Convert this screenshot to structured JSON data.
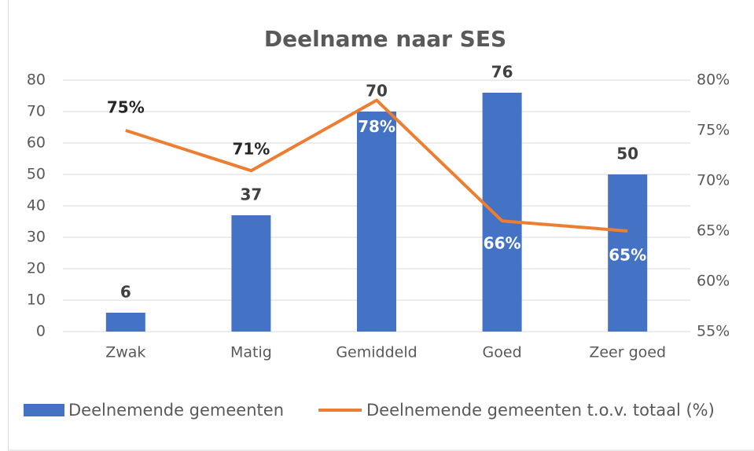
{
  "chart_data": {
    "type": "bar-line",
    "title": "Deelname naar SES",
    "categories": [
      "Zwak",
      "Matig",
      "Gemiddeld",
      "Goed",
      "Zeer goed"
    ],
    "series": [
      {
        "name": "Deelnemende gemeenten",
        "type": "bar",
        "color": "#4472c4",
        "values": [
          6,
          37,
          70,
          76,
          50
        ]
      },
      {
        "name": "Deelnemende gemeenten t.o.v. totaal (%)",
        "type": "line",
        "axis": "y2",
        "color": "#ed7d31",
        "values": [
          75,
          71,
          78,
          66,
          65
        ],
        "value_labels": [
          "75%",
          "71%",
          "78%",
          "66%",
          "65%"
        ]
      }
    ],
    "ylim": [
      0,
      80
    ],
    "yticks": [
      0,
      10,
      20,
      30,
      40,
      50,
      60,
      70,
      80
    ],
    "y2lim": [
      55,
      80
    ],
    "y2ticks": [
      {
        "value": 55,
        "label": "55%"
      },
      {
        "value": 60,
        "label": "60%"
      },
      {
        "value": 65,
        "label": "65%"
      },
      {
        "value": 70,
        "label": "70%"
      },
      {
        "value": 75,
        "label": "75%"
      },
      {
        "value": 80,
        "label": "80%"
      }
    ],
    "grid": true,
    "legend": "bottom"
  }
}
